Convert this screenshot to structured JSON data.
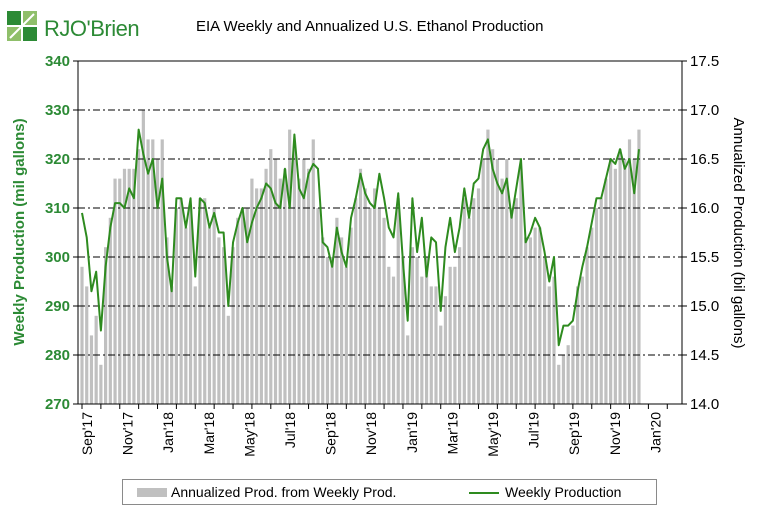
{
  "logo": {
    "text": "RJO'Brien"
  },
  "colors": {
    "bar": "#c0c0c0",
    "line": "#2e8b1f",
    "left_axis_text": "#2c8a35",
    "grid": "#000000"
  },
  "chart_data": {
    "type": "bar+line",
    "title": "EIA Weekly and Annualized U.S. Ethanol Production",
    "ylabel_left": "Weekly Production (mil gallons)",
    "ylabel_right": "Annualized Production (bil gallons)",
    "ylim_left": [
      270,
      340
    ],
    "ylim_right": [
      14.0,
      17.5
    ],
    "yticks_left": [
      "270",
      "280",
      "290",
      "300",
      "310",
      "320",
      "330",
      "340"
    ],
    "yticks_right": [
      "14.0",
      "14.5",
      "15.0",
      "15.5",
      "16.0",
      "16.5",
      "17.0",
      "17.5"
    ],
    "xticks": [
      "Sep'17",
      "Nov'17",
      "Jan'18",
      "Mar'18",
      "May'18",
      "Jul'18",
      "Sep'18",
      "Nov'18",
      "Jan'19",
      "Mar'19",
      "May'19",
      "Jul'19",
      "Sep'19",
      "Nov'19",
      "Jan'20"
    ],
    "grid": "horizontal dash-dot",
    "legend": "bottom",
    "series": [
      {
        "name": "Annualized Prod. from Weekly Prod.",
        "type": "bar",
        "axis": "right",
        "values": [
          15.4,
          15.2,
          14.7,
          14.9,
          14.4,
          15.6,
          15.9,
          16.3,
          16.3,
          16.4,
          16.4,
          16.4,
          16.6,
          17.0,
          16.7,
          16.7,
          16.5,
          16.7,
          15.7,
          15.2,
          16.0,
          16.1,
          15.8,
          16.0,
          15.2,
          16.1,
          16.1,
          15.8,
          16.0,
          15.7,
          15.6,
          14.9,
          15.6,
          15.9,
          16.0,
          16.0,
          16.3,
          16.2,
          16.2,
          16.4,
          16.6,
          16.5,
          16.3,
          16.4,
          16.8,
          16.6,
          16.3,
          16.5,
          16.4,
          16.7,
          16.0,
          15.7,
          15.5,
          15.5,
          15.9,
          15.7,
          15.4,
          15.8,
          16.1,
          16.4,
          16.2,
          16.0,
          16.2,
          16.0,
          15.9,
          15.4,
          15.3,
          16.1,
          15.5,
          14.7,
          15.6,
          15.5,
          15.3,
          15.5,
          15.2,
          15.2,
          14.8,
          15.1,
          15.4,
          15.4,
          15.6,
          16.1,
          15.9,
          16.1,
          16.2,
          16.5,
          16.8,
          16.6,
          16.5,
          16.3,
          16.5,
          16.0,
          16.1,
          16.4,
          15.7,
          15.7,
          15.8,
          15.8,
          15.5,
          15.2,
          15.3,
          14.4,
          14.5,
          14.6,
          14.8,
          15.2,
          15.3,
          15.6,
          15.8,
          16.0,
          16.1,
          16.3,
          16.5,
          16.4,
          16.6,
          16.5,
          16.7,
          16.5,
          16.8
        ]
      },
      {
        "name": "Weekly Production",
        "type": "line",
        "axis": "left",
        "values": [
          309,
          304,
          293,
          297,
          285,
          298,
          306,
          311,
          311,
          310,
          314,
          312,
          326,
          321,
          317,
          320,
          310,
          316,
          300,
          293,
          312,
          312,
          306,
          312,
          296,
          312,
          311,
          306,
          309,
          305,
          305,
          290,
          303,
          307,
          310,
          303,
          307,
          310,
          312,
          315,
          314,
          311,
          310,
          318,
          310,
          325,
          314,
          312,
          317,
          319,
          318,
          303,
          302,
          298,
          306,
          301,
          298,
          308,
          312,
          317,
          313,
          311,
          310,
          317,
          312,
          306,
          304,
          313,
          299,
          287,
          312,
          301,
          308,
          296,
          304,
          303,
          289,
          302,
          308,
          301,
          306,
          314,
          308,
          315,
          316,
          322,
          324,
          318,
          315,
          313,
          316,
          308,
          314,
          320,
          303,
          305,
          308,
          306,
          301,
          295,
          300,
          282,
          286,
          286,
          287,
          293,
          298,
          302,
          307,
          312,
          312,
          316,
          320,
          319,
          322,
          318,
          320,
          313,
          322
        ]
      }
    ]
  }
}
